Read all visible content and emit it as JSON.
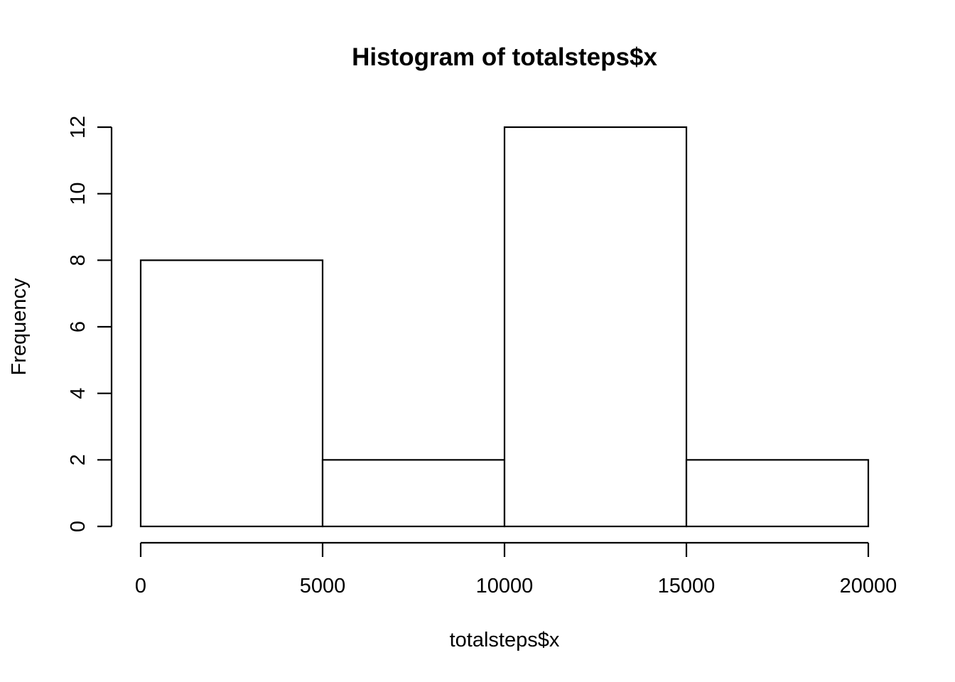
{
  "chart_data": {
    "type": "bar",
    "title": "Histogram of totalsteps$x",
    "xlabel": "totalsteps$x",
    "ylabel": "Frequency",
    "bins": [
      {
        "start": 0,
        "end": 5000,
        "count": 8
      },
      {
        "start": 5000,
        "end": 10000,
        "count": 2
      },
      {
        "start": 10000,
        "end": 15000,
        "count": 12
      },
      {
        "start": 15000,
        "end": 20000,
        "count": 2
      }
    ],
    "xlim": [
      0,
      20000
    ],
    "ylim": [
      0,
      12
    ],
    "x_ticks": [
      0,
      5000,
      10000,
      15000,
      20000
    ],
    "x_tick_labels": [
      "0",
      "5000",
      "10000",
      "15000",
      "20000"
    ],
    "y_ticks": [
      0,
      2,
      4,
      6,
      8,
      10,
      12
    ],
    "y_tick_labels": [
      "0",
      "2",
      "4",
      "6",
      "8",
      "10",
      "12"
    ],
    "grid": false,
    "colors": {
      "bar_fill": "#ffffff",
      "bar_stroke": "#000000",
      "axis": "#000000",
      "background": "#ffffff"
    }
  }
}
